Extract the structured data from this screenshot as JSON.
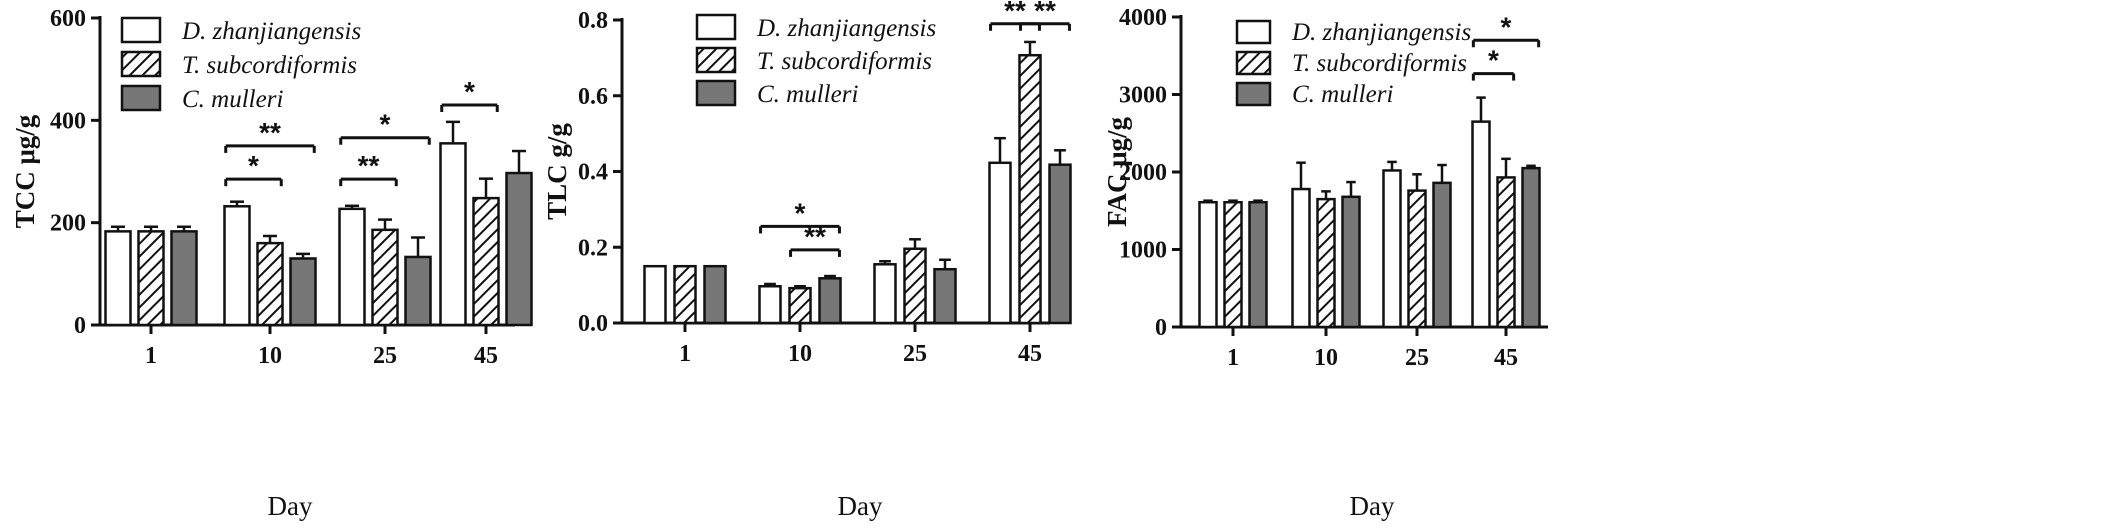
{
  "colors": {
    "series_fills": [
      "#ffffff",
      "hatch",
      "#777777"
    ],
    "stroke": "#111111"
  },
  "chart_data": [
    {
      "type": "bar",
      "ylabel": "TCC  μg/g",
      "xlabel": "Day",
      "ylim": [
        0,
        600
      ],
      "yticks": [
        "0",
        "200",
        "400",
        "600"
      ],
      "categories": [
        "1",
        "10",
        "25",
        "45"
      ],
      "legend_position": "top-left",
      "series": [
        {
          "name": "D. zhanjiangensis",
          "values": [
            183,
            232,
            227,
            355
          ],
          "errors": [
            9,
            9,
            6,
            42
          ]
        },
        {
          "name": "T. subcordiformis",
          "values": [
            183,
            160,
            186,
            248
          ],
          "errors": [
            9,
            14,
            20,
            38
          ]
        },
        {
          "name": "C. mulleri",
          "values": [
            183,
            130,
            133,
            297
          ],
          "errors": [
            9,
            9,
            38,
            43
          ]
        }
      ],
      "significance": [
        {
          "label": "*",
          "group": "10",
          "from": 0,
          "to": 1,
          "y": 285
        },
        {
          "label": "**",
          "group": "10",
          "from": 0,
          "to": 2,
          "y": 350
        },
        {
          "label": "**",
          "group": "25",
          "from": 0,
          "to": 1,
          "y": 285
        },
        {
          "label": "*",
          "group": "25",
          "from": 0,
          "to": 2,
          "y": 366
        },
        {
          "label": "*",
          "group": "45",
          "from": 0,
          "to": 1,
          "y": 430
        }
      ]
    },
    {
      "type": "bar",
      "ylabel": "TLC  g/g",
      "xlabel": "Day",
      "ylim": [
        0,
        0.8
      ],
      "yticks": [
        "0.0",
        "0.2",
        "0.4",
        "0.6",
        "0.8"
      ],
      "categories": [
        "1",
        "10",
        "25",
        "45"
      ],
      "legend_position": "top-left",
      "series": [
        {
          "name": "D. zhanjiangensis",
          "values": [
            0.15,
            0.097,
            0.155,
            0.423
          ],
          "errors": [
            0.0,
            0.006,
            0.008,
            0.065
          ]
        },
        {
          "name": "T. subcordiformis",
          "values": [
            0.15,
            0.092,
            0.196,
            0.707
          ],
          "errors": [
            0.0,
            0.005,
            0.025,
            0.035
          ]
        },
        {
          "name": "C. mulleri",
          "values": [
            0.15,
            0.118,
            0.142,
            0.418
          ],
          "errors": [
            0.0,
            0.006,
            0.025,
            0.038
          ]
        }
      ],
      "significance": [
        {
          "label": "**",
          "group": "10",
          "from": 1,
          "to": 2,
          "y": 0.193
        },
        {
          "label": "*",
          "group": "10",
          "from": 0,
          "to": 2,
          "y": 0.255
        },
        {
          "label": "**",
          "group": "45",
          "from": 0,
          "to": 1,
          "y": 0.79
        },
        {
          "label": "**",
          "group": "45",
          "from": 1,
          "to": 2,
          "y": 0.79
        }
      ]
    },
    {
      "type": "bar",
      "ylabel": "FAC μg/g",
      "xlabel": "Day",
      "ylim": [
        0,
        4000
      ],
      "yticks": [
        "0",
        "1000",
        "2000",
        "3000",
        "4000"
      ],
      "categories": [
        "1",
        "10",
        "25",
        "45"
      ],
      "legend_position": "top-left",
      "series": [
        {
          "name": "D. zhanjiangensis",
          "values": [
            1610,
            1780,
            2020,
            2650
          ],
          "errors": [
            20,
            340,
            110,
            310
          ]
        },
        {
          "name": "T. subcordiformis",
          "values": [
            1610,
            1650,
            1760,
            1930
          ],
          "errors": [
            20,
            100,
            210,
            240
          ]
        },
        {
          "name": "C. mulleri",
          "values": [
            1610,
            1680,
            1860,
            2050
          ],
          "errors": [
            20,
            190,
            230,
            30
          ]
        }
      ],
      "significance": [
        {
          "label": "*",
          "group": "45",
          "from": 0,
          "to": 1,
          "y": 3270
        },
        {
          "label": "*",
          "group": "45",
          "from": 0,
          "to": 2,
          "y": 3700
        }
      ]
    }
  ]
}
